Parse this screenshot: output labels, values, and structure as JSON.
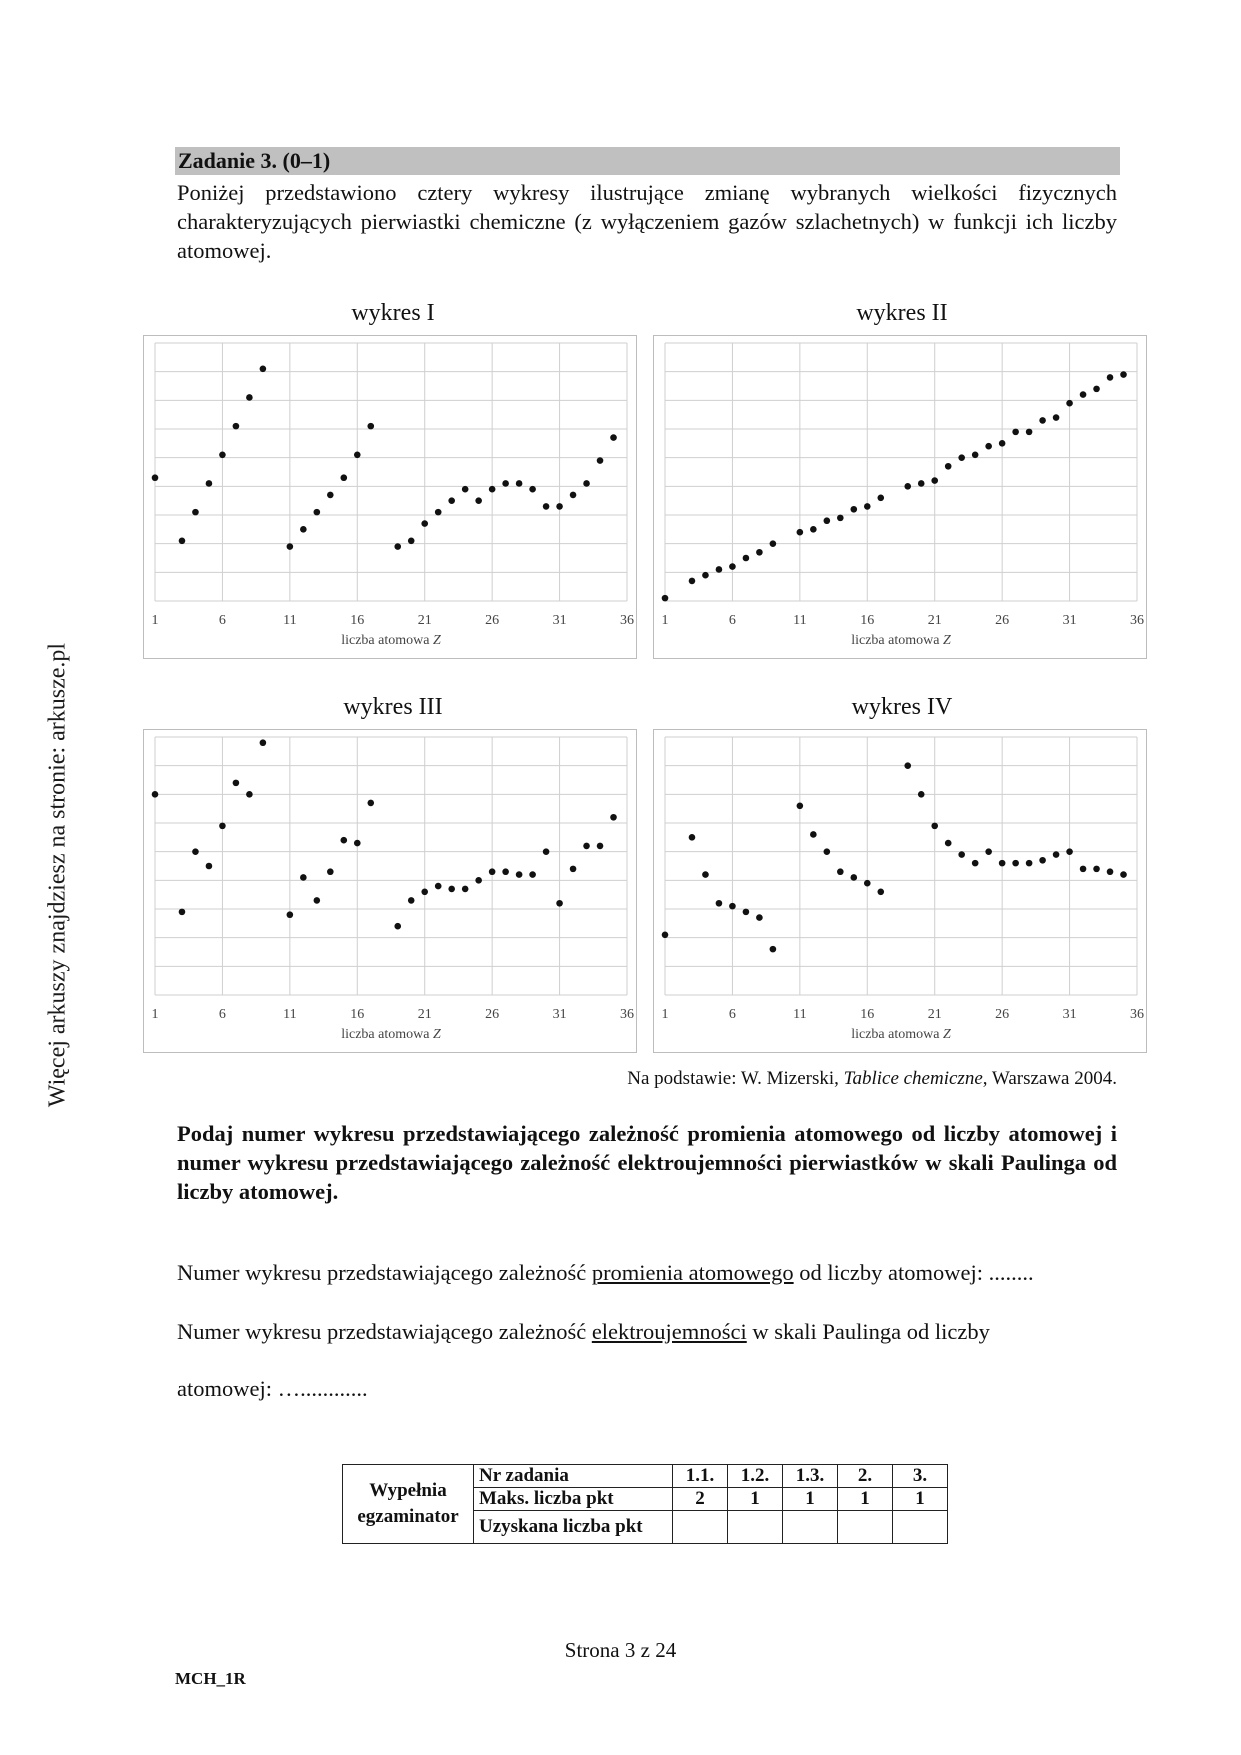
{
  "side_note": "Więcej arkuszy znajdziesz na stronie: arkusze.pl",
  "task": {
    "title": "Zadanie 3. (0–1)",
    "intro": "Poniżej przedstawiono cztery wykresy ilustrujące zmianę wybranych wielkości fizycznych charakteryzujących pierwiastki chemiczne (z wyłączeniem gazów szlachetnych) w funkcji ich liczby atomowej."
  },
  "chart_data": [
    {
      "type": "scatter",
      "title": "wykres I",
      "xlabel": "liczba atomowa",
      "xlabel_var": "Z",
      "xticks": [
        1,
        6,
        11,
        16,
        21,
        26,
        31,
        36
      ],
      "xlim": [
        1,
        36
      ],
      "ylim": [
        0,
        9
      ],
      "grid": true,
      "points": [
        [
          1,
          4.3
        ],
        [
          3,
          2.1
        ],
        [
          4,
          3.1
        ],
        [
          5,
          4.1
        ],
        [
          6,
          5.1
        ],
        [
          7,
          6.1
        ],
        [
          8,
          7.1
        ],
        [
          9,
          8.1
        ],
        [
          11,
          1.9
        ],
        [
          12,
          2.5
        ],
        [
          13,
          3.1
        ],
        [
          14,
          3.7
        ],
        [
          15,
          4.3
        ],
        [
          16,
          5.1
        ],
        [
          17,
          6.1
        ],
        [
          19,
          1.9
        ],
        [
          20,
          2.1
        ],
        [
          21,
          2.7
        ],
        [
          22,
          3.1
        ],
        [
          23,
          3.5
        ],
        [
          24,
          3.9
        ],
        [
          25,
          3.5
        ],
        [
          26,
          3.9
        ],
        [
          27,
          4.1
        ],
        [
          28,
          4.1
        ],
        [
          29,
          3.9
        ],
        [
          30,
          3.3
        ],
        [
          31,
          3.3
        ],
        [
          32,
          3.7
        ],
        [
          33,
          4.1
        ],
        [
          34,
          4.9
        ],
        [
          35,
          5.7
        ]
      ]
    },
    {
      "type": "scatter",
      "title": "wykres II",
      "xlabel": "liczba atomowa",
      "xlabel_var": "Z",
      "xticks": [
        1,
        6,
        11,
        16,
        21,
        26,
        31,
        36
      ],
      "xlim": [
        1,
        36
      ],
      "ylim": [
        0,
        9
      ],
      "grid": true,
      "points": [
        [
          1,
          0.1
        ],
        [
          3,
          0.7
        ],
        [
          4,
          0.9
        ],
        [
          5,
          1.1
        ],
        [
          6,
          1.2
        ],
        [
          7,
          1.5
        ],
        [
          8,
          1.7
        ],
        [
          9,
          2.0
        ],
        [
          11,
          2.4
        ],
        [
          12,
          2.5
        ],
        [
          13,
          2.8
        ],
        [
          14,
          2.9
        ],
        [
          15,
          3.2
        ],
        [
          16,
          3.3
        ],
        [
          17,
          3.6
        ],
        [
          19,
          4.0
        ],
        [
          20,
          4.1
        ],
        [
          21,
          4.2
        ],
        [
          22,
          4.7
        ],
        [
          23,
          5.0
        ],
        [
          24,
          5.1
        ],
        [
          25,
          5.4
        ],
        [
          26,
          5.5
        ],
        [
          27,
          5.9
        ],
        [
          28,
          5.9
        ],
        [
          29,
          6.3
        ],
        [
          30,
          6.4
        ],
        [
          31,
          6.9
        ],
        [
          32,
          7.2
        ],
        [
          33,
          7.4
        ],
        [
          34,
          7.8
        ],
        [
          35,
          7.9
        ]
      ]
    },
    {
      "type": "scatter",
      "title": "wykres III",
      "xlabel": "liczba atomowa",
      "xlabel_var": "Z",
      "xticks": [
        1,
        6,
        11,
        16,
        21,
        26,
        31,
        36
      ],
      "xlim": [
        1,
        36
      ],
      "ylim": [
        0,
        9
      ],
      "grid": true,
      "points": [
        [
          1,
          7.0
        ],
        [
          3,
          2.9
        ],
        [
          4,
          5.0
        ],
        [
          5,
          4.5
        ],
        [
          6,
          5.9
        ],
        [
          7,
          7.4
        ],
        [
          8,
          7.0
        ],
        [
          9,
          8.8
        ],
        [
          11,
          2.8
        ],
        [
          12,
          4.1
        ],
        [
          13,
          3.3
        ],
        [
          14,
          4.3
        ],
        [
          15,
          5.4
        ],
        [
          16,
          5.3
        ],
        [
          17,
          6.7
        ],
        [
          19,
          2.4
        ],
        [
          20,
          3.3
        ],
        [
          21,
          3.6
        ],
        [
          22,
          3.8
        ],
        [
          23,
          3.7
        ],
        [
          24,
          3.7
        ],
        [
          25,
          4.0
        ],
        [
          26,
          4.3
        ],
        [
          27,
          4.3
        ],
        [
          28,
          4.2
        ],
        [
          29,
          4.2
        ],
        [
          30,
          5.0
        ],
        [
          31,
          3.2
        ],
        [
          32,
          4.4
        ],
        [
          33,
          5.2
        ],
        [
          34,
          5.2
        ],
        [
          35,
          6.2
        ]
      ]
    },
    {
      "type": "scatter",
      "title": "wykres IV",
      "xlabel": "liczba atomowa",
      "xlabel_var": "Z",
      "xticks": [
        1,
        6,
        11,
        16,
        21,
        26,
        31,
        36
      ],
      "xlim": [
        1,
        36
      ],
      "ylim": [
        0,
        9
      ],
      "grid": true,
      "points": [
        [
          1,
          2.1
        ],
        [
          3,
          5.5
        ],
        [
          4,
          4.2
        ],
        [
          5,
          3.2
        ],
        [
          6,
          3.1
        ],
        [
          7,
          2.9
        ],
        [
          8,
          2.7
        ],
        [
          9,
          1.6
        ],
        [
          11,
          6.6
        ],
        [
          12,
          5.6
        ],
        [
          13,
          5.0
        ],
        [
          14,
          4.3
        ],
        [
          15,
          4.1
        ],
        [
          16,
          3.9
        ],
        [
          17,
          3.6
        ],
        [
          19,
          8.0
        ],
        [
          20,
          7.0
        ],
        [
          21,
          5.9
        ],
        [
          22,
          5.3
        ],
        [
          23,
          4.9
        ],
        [
          24,
          4.6
        ],
        [
          25,
          5.0
        ],
        [
          26,
          4.6
        ],
        [
          27,
          4.6
        ],
        [
          28,
          4.6
        ],
        [
          29,
          4.7
        ],
        [
          30,
          4.9
        ],
        [
          31,
          5.0
        ],
        [
          32,
          4.4
        ],
        [
          33,
          4.4
        ],
        [
          34,
          4.3
        ],
        [
          35,
          4.2
        ]
      ]
    }
  ],
  "source": {
    "prefix": "Na podstawie: W. Mizerski, ",
    "italic": "Tablice chemiczne",
    "suffix": ", Warszawa 2004."
  },
  "question": "Podaj numer wykresu przedstawiającego zależność promienia atomowego od liczby atomowej i numer wykresu przedstawiającego zależność elektroujemności pierwiastków w skali Paulinga od liczby atomowej.",
  "answer1": {
    "before": "Numer wykresu przedstawiającego zależność ",
    "underline": "promienia atomowego",
    "after": " od liczby atomowej: ........"
  },
  "answer2": {
    "before": "Numer wykresu przedstawiającego zależność ",
    "underline": "elektroujemności",
    "after": " w skali Paulinga od liczby",
    "line2": "atomowej: …............"
  },
  "score_table": {
    "label_line1": "Wypełnia",
    "label_line2": "egzaminator",
    "row_task_label": "Nr zadania",
    "task_numbers": [
      "1.1.",
      "1.2.",
      "1.3.",
      "2.",
      "3."
    ],
    "row_max_label": "Maks. liczba pkt",
    "max_points": [
      "2",
      "1",
      "1",
      "1",
      "1"
    ],
    "row_got_label": "Uzyskana liczba pkt",
    "got_points": [
      "",
      "",
      "",
      "",
      ""
    ]
  },
  "footer": {
    "page": "Strona 3 z 24",
    "code": "MCH_1R"
  }
}
